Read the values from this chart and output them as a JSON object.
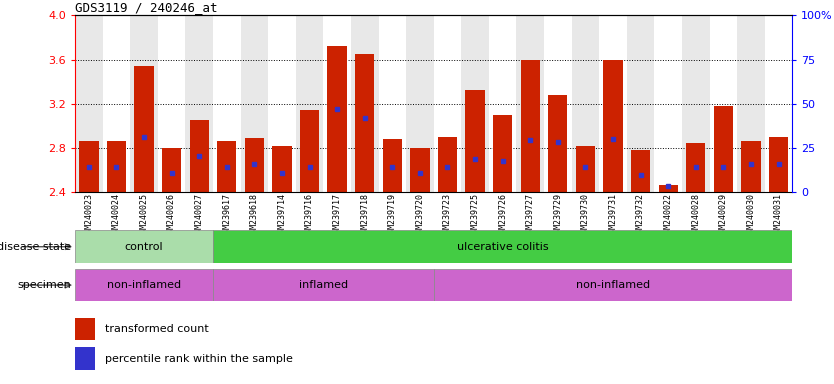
{
  "title": "GDS3119 / 240246_at",
  "samples": [
    "GSM240023",
    "GSM240024",
    "GSM240025",
    "GSM240026",
    "GSM240027",
    "GSM239617",
    "GSM239618",
    "GSM239714",
    "GSM239716",
    "GSM239717",
    "GSM239718",
    "GSM239719",
    "GSM239720",
    "GSM239723",
    "GSM239725",
    "GSM239726",
    "GSM239727",
    "GSM239729",
    "GSM239730",
    "GSM239731",
    "GSM239732",
    "GSM240022",
    "GSM240028",
    "GSM240029",
    "GSM240030",
    "GSM240031"
  ],
  "bar_heights": [
    2.86,
    2.86,
    3.54,
    2.8,
    3.05,
    2.86,
    2.89,
    2.82,
    3.14,
    3.72,
    3.65,
    2.88,
    2.8,
    2.9,
    3.32,
    3.1,
    3.6,
    3.28,
    2.82,
    3.6,
    2.78,
    2.46,
    2.84,
    3.18,
    2.86,
    2.9
  ],
  "blue_dot_heights": [
    2.63,
    2.63,
    2.9,
    2.57,
    2.73,
    2.63,
    2.65,
    2.57,
    2.63,
    3.15,
    3.07,
    2.63,
    2.57,
    2.63,
    2.7,
    2.68,
    2.87,
    2.85,
    2.63,
    2.88,
    2.55,
    2.45,
    2.63,
    2.63,
    2.65,
    2.65
  ],
  "ymin": 2.4,
  "ymax": 4.0,
  "yticks_left": [
    2.4,
    2.8,
    3.2,
    3.6,
    4.0
  ],
  "right_tick_labels": [
    "0",
    "25",
    "50",
    "75",
    "100%"
  ],
  "bar_color": "#cc2200",
  "dot_color": "#3333cc",
  "bg_color_even": "#e8e8e8",
  "bg_color_odd": "#ffffff",
  "control_color": "#aaddaa",
  "uc_color": "#44cc44",
  "specimen_color": "#cc66cc",
  "inflamed_color": "#cc66cc",
  "disease_state_groups": [
    {
      "label": "control",
      "start": 0,
      "end": 5
    },
    {
      "label": "ulcerative colitis",
      "start": 5,
      "end": 26
    }
  ],
  "specimen_groups": [
    {
      "label": "non-inflamed",
      "start": 0,
      "end": 5
    },
    {
      "label": "inflamed",
      "start": 5,
      "end": 13
    },
    {
      "label": "non-inflamed",
      "start": 13,
      "end": 26
    }
  ]
}
